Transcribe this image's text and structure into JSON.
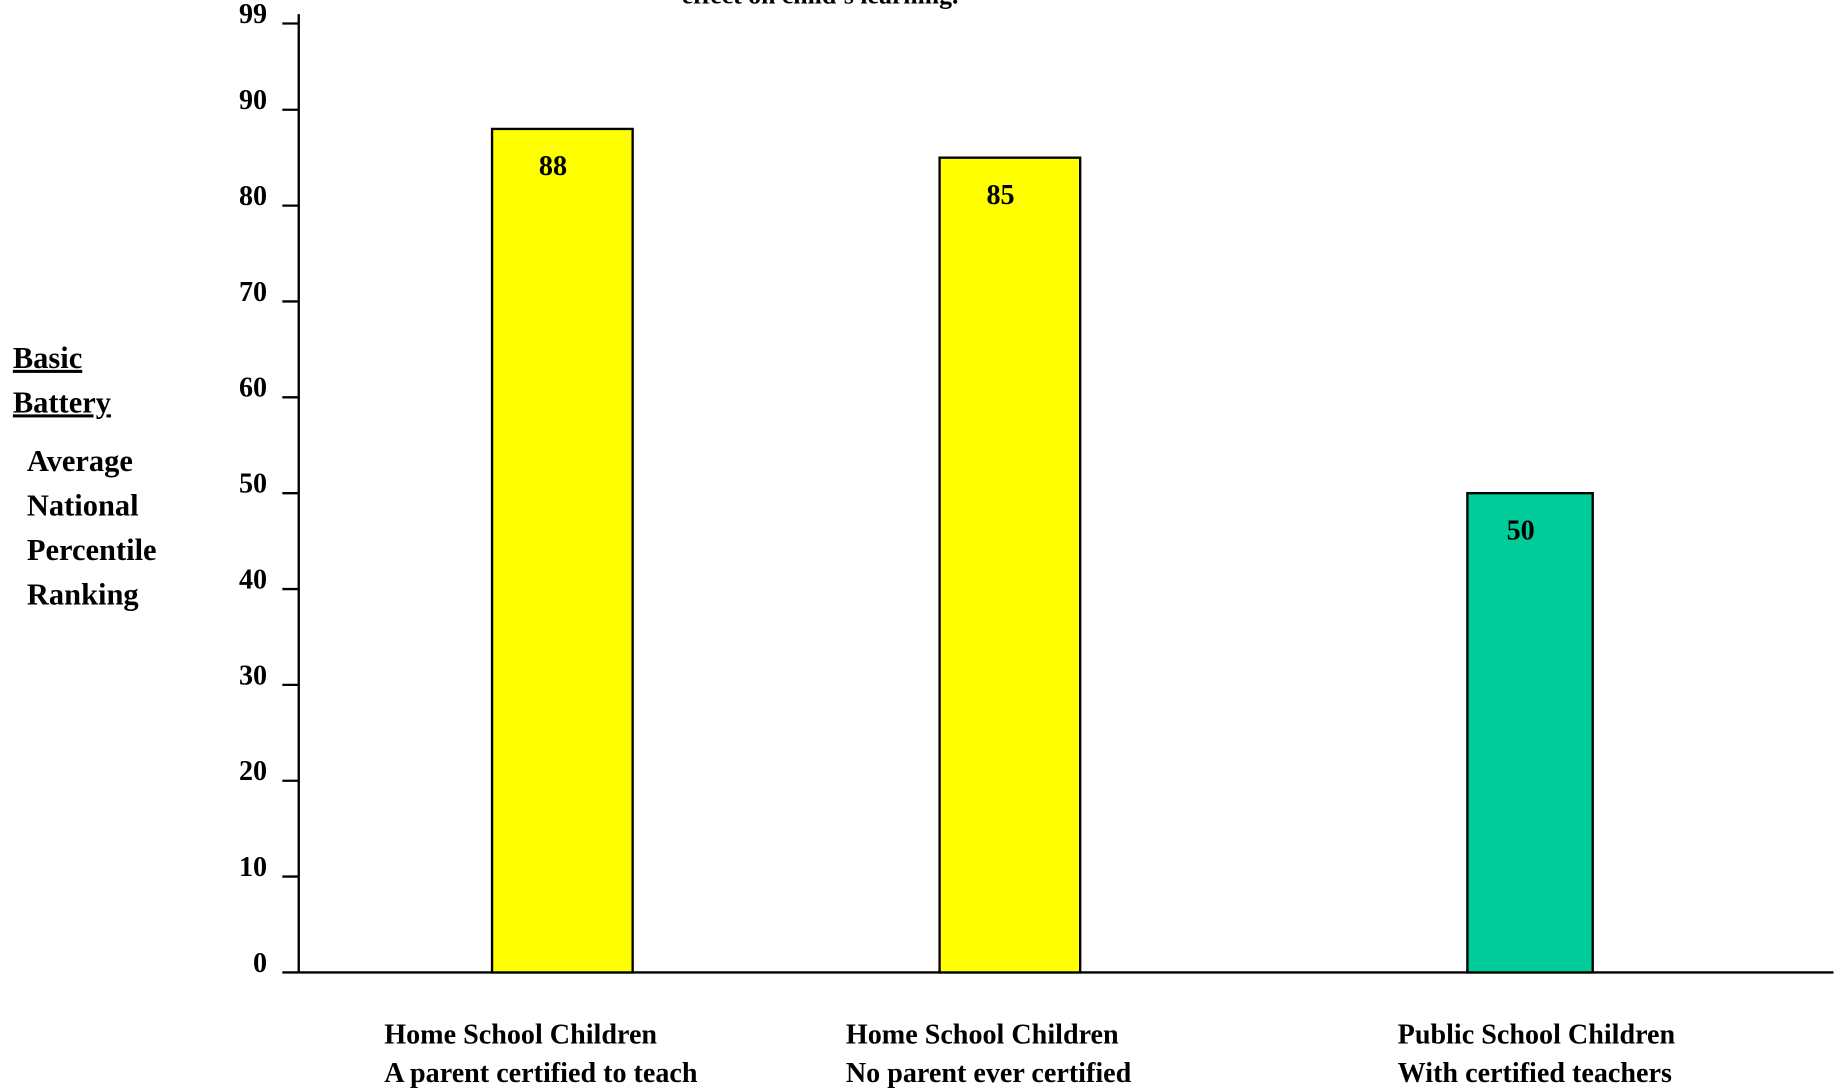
{
  "chart_data": {
    "type": "bar",
    "title": "effect on child’s learning.",
    "ylabel_underlined": [
      "Basic",
      "Battery"
    ],
    "ylabel": [
      "Average",
      "National",
      "Percentile",
      "Ranking"
    ],
    "categories": [
      [
        "Home School Children",
        "A parent certified to teach"
      ],
      [
        "Home School Children",
        "No parent ever certified"
      ],
      [
        "Public School Children",
        "With certified teachers"
      ]
    ],
    "values": [
      88,
      85,
      50
    ],
    "colors": [
      "#ffff00",
      "#ffff00",
      "#00cc99"
    ],
    "ylim": [
      0,
      99
    ],
    "yticks": [
      0,
      10,
      20,
      30,
      40,
      50,
      60,
      70,
      80,
      90,
      99
    ],
    "grid": false
  }
}
